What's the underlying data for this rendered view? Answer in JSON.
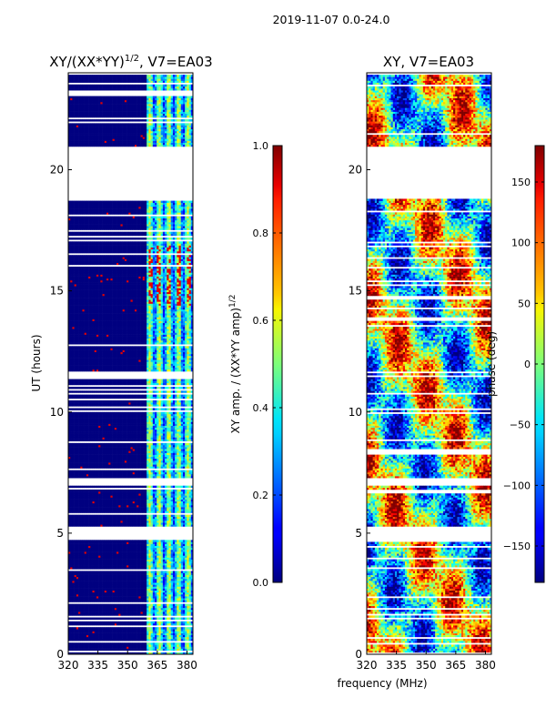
{
  "suptitle": "2019-11-07 0.0-24.0",
  "colors": {
    "background": "#ffffff",
    "blank": "#ffffff",
    "low": "#00007f",
    "axis": "#000000"
  },
  "chart_data": [
    {
      "type": "heatmap",
      "title_main": "XY/(XX*YY)",
      "title_sup": "1/2",
      "title_rest": ", V7=EA03",
      "xlabel": "",
      "ylabel": "UT (hours)",
      "xlim": [
        320,
        383
      ],
      "ylim": [
        0,
        24
      ],
      "xticks": [
        "320",
        "335",
        "350",
        "365",
        "380"
      ],
      "xtick_values": [
        320,
        335,
        350,
        365,
        380
      ],
      "yticks": [
        "0",
        "5",
        "10",
        "15",
        "20"
      ],
      "ytick_values": [
        0,
        5,
        10,
        15,
        20
      ],
      "colorbar": {
        "label_main": "XY amp. / (XX*YY amp)",
        "label_sup": "1/2",
        "range": [
          0,
          1
        ],
        "ticks": [
          "0.0",
          "0.2",
          "0.4",
          "0.6",
          "0.8",
          "1.0"
        ],
        "tick_values": [
          0,
          0.2,
          0.4,
          0.6,
          0.8,
          1.0
        ]
      },
      "data_description_values": {
        "blank_time_gaps_hours": [
          [
            4.7,
            5.3
          ],
          [
            7.0,
            7.3
          ],
          [
            18.8,
            21.0
          ]
        ],
        "active_freq_band_MHz": [
          360,
          383
        ],
        "typical_amp_outside_band": 0.0,
        "typical_amp_in_band": 0.45,
        "peak_amp_hours": [
          14.3,
          16.9
        ],
        "peak_amp": 0.9
      }
    },
    {
      "type": "heatmap",
      "title_main": "XY, V7=EA03",
      "xlabel": "frequency (MHz)",
      "ylabel": "",
      "xlim": [
        320,
        383
      ],
      "ylim": [
        0,
        24
      ],
      "xticks": [
        "320",
        "335",
        "350",
        "365",
        "380"
      ],
      "xtick_values": [
        320,
        335,
        350,
        365,
        380
      ],
      "yticks": [
        "0",
        "5",
        "10",
        "15",
        "20"
      ],
      "ytick_values": [
        0,
        5,
        10,
        15,
        20
      ],
      "colorbar": {
        "label": "phase (deg)",
        "range": [
          -180,
          180
        ],
        "ticks": [
          "−150",
          "−100",
          "−50",
          "0",
          "50",
          "100",
          "150"
        ],
        "tick_values": [
          -150,
          -100,
          -50,
          0,
          50,
          100,
          150
        ]
      },
      "data_description_values": {
        "blank_time_gaps_hours": [
          [
            4.7,
            5.3
          ],
          [
            7.0,
            7.3
          ],
          [
            18.8,
            21.0
          ]
        ],
        "phase_range_deg": [
          -180,
          180
        ]
      }
    }
  ]
}
